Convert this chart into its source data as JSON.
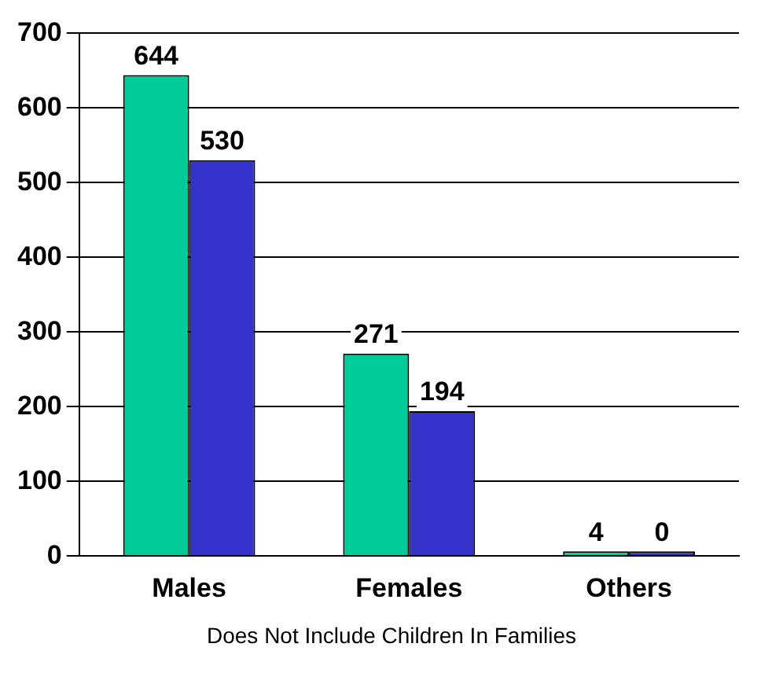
{
  "chart_data": {
    "type": "bar",
    "categories": [
      "Males",
      "Females",
      "Others"
    ],
    "series": [
      {
        "color": "#00cc99",
        "values": [
          644,
          271,
          4
        ]
      },
      {
        "color": "#3333cc",
        "values": [
          530,
          194,
          0
        ]
      }
    ],
    "ylim": [
      0,
      700
    ],
    "yticks": [
      0,
      100,
      200,
      300,
      400,
      500,
      600,
      700
    ],
    "grid": "y",
    "legend": false,
    "data_labels": true,
    "annotations": [
      "Does Not Include Children In Families"
    ]
  }
}
